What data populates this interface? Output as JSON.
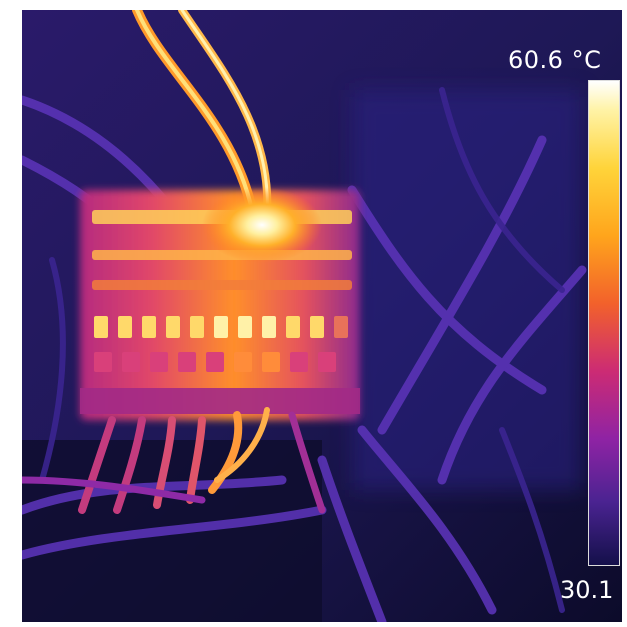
{
  "thermal_image": {
    "description_icon": "thermal-camera-image",
    "scale": {
      "max_label": "60.6 °C",
      "min_label": "30.1"
    },
    "colors": {
      "background_cold": "#14113a",
      "cool_purple": "#4b2aa8",
      "warm_magenta": "#c8287e",
      "hot_orange": "#ff8a1f",
      "hottest_yellow": "#ffe98a",
      "white_hot": "#ffffff"
    }
  }
}
